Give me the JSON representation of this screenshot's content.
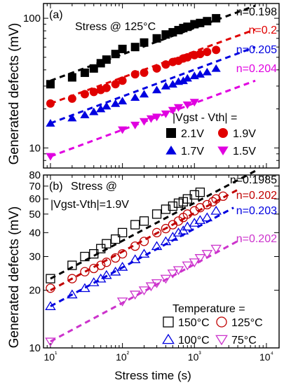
{
  "figure": {
    "x_axis_label": "Stress time (s)",
    "y_axis_label": "Generated defects (mV)"
  },
  "chart_data": [
    {
      "type": "scatter",
      "panel_label": "(a)",
      "annotation": "Stress @ 125°C",
      "legend_title": "|Vgst - Vth| =",
      "legend_placement": "bottom-right",
      "xscale": "log",
      "yscale": "log",
      "xlim": [
        8,
        15000
      ],
      "ylim": [
        7,
        130
      ],
      "x_ticks": [
        10,
        100,
        1000,
        10000
      ],
      "x_tick_labels": [
        "",
        "",
        "",
        ""
      ],
      "y_ticks": [
        10,
        100
      ],
      "y_tick_labels": [
        "10",
        "100"
      ],
      "series": [
        {
          "name": "2.1V",
          "marker": "square-filled",
          "color": "#000000",
          "fit_label": "n=0.198",
          "x": [
            10,
            20,
            30,
            40,
            50,
            60,
            80,
            100,
            150,
            200,
            300,
            400,
            500,
            600,
            700,
            800,
            1000,
            1200,
            1500,
            2000
          ],
          "y": [
            31,
            35,
            38,
            41,
            45,
            48,
            53,
            58,
            60,
            65,
            70,
            75,
            78,
            81,
            84,
            86,
            90,
            92,
            95,
            100
          ],
          "fit": {
            "x": [
              10,
              7000
            ],
            "y": [
              33,
              125
            ]
          }
        },
        {
          "name": "1.9V",
          "marker": "circle-filled",
          "color": "#e00000",
          "fit_label": "n=0.2",
          "x": [
            10,
            20,
            30,
            40,
            50,
            60,
            80,
            100,
            150,
            200,
            300,
            400,
            500,
            600,
            700,
            800,
            1000,
            1200,
            1500,
            2000
          ],
          "y": [
            22,
            24,
            26,
            27,
            28,
            29,
            31,
            33,
            37,
            38,
            41,
            44,
            46,
            47,
            49,
            50,
            52,
            53,
            55,
            57
          ],
          "fit": {
            "x": [
              10,
              7000
            ],
            "y": [
              22,
              82
            ]
          }
        },
        {
          "name": "1.7V",
          "marker": "triangle-up-filled",
          "color": "#0000e0",
          "fit_label": "n=0.205",
          "x": [
            10,
            20,
            30,
            40,
            50,
            60,
            80,
            100,
            150,
            200,
            300,
            400,
            500,
            600,
            700,
            800,
            1000,
            1200,
            1500,
            2000
          ],
          "y": [
            15.5,
            17,
            18,
            19,
            20,
            21,
            22,
            23,
            24.5,
            26,
            28,
            30,
            31,
            32.5,
            33,
            34.5,
            36,
            37,
            38.5,
            41
          ],
          "fit": {
            "x": [
              10,
              7000
            ],
            "y": [
              15.5,
              60
            ]
          }
        },
        {
          "name": "1.5V",
          "marker": "triangle-down-filled",
          "color": "#e000e0",
          "fit_label": "n=0.204",
          "x": [
            10,
            100,
            150,
            200,
            250,
            300,
            400,
            500,
            600,
            800,
            1000
          ],
          "y": [
            8.6,
            13.8,
            15,
            16,
            16.8,
            17.3,
            18.3,
            19.5,
            20.5,
            21.5,
            22.5
          ],
          "fit": {
            "x": [
              10,
              7000
            ],
            "y": [
              8.6,
              33
            ]
          }
        }
      ]
    },
    {
      "type": "scatter",
      "panel_label": "(b)",
      "annotation_lines": [
        "Stress @",
        "|Vgst-Vth|=1.9V"
      ],
      "legend_title": "Temperature =",
      "legend_placement": "bottom-right",
      "xscale": "log",
      "yscale": "log",
      "xlim": [
        8,
        15000
      ],
      "ylim": [
        10,
        80
      ],
      "x_ticks": [
        10,
        100,
        1000,
        10000
      ],
      "x_tick_labels": [
        "10¹",
        "10²",
        "10³",
        "10⁴"
      ],
      "y_ticks": [
        10,
        20,
        30,
        40,
        50,
        60,
        70,
        80
      ],
      "y_tick_labels": [
        "10",
        "20",
        "30",
        "40",
        "50",
        "60",
        "70",
        "80"
      ],
      "series": [
        {
          "name": "150°C",
          "marker": "square-open",
          "color": "#000000",
          "fit_label": "n=0.1985",
          "x": [
            10,
            20,
            30,
            40,
            50,
            60,
            80,
            100,
            150,
            200,
            300,
            400,
            500,
            600,
            700,
            800,
            1000,
            1200
          ],
          "y": [
            23,
            27,
            30,
            31,
            33,
            35,
            37,
            40,
            44,
            46,
            50,
            53,
            55,
            57,
            58,
            60,
            63,
            65
          ],
          "fit": {
            "x": [
              10,
              7000
            ],
            "y": [
              23,
              84
            ]
          }
        },
        {
          "name": "125°C",
          "marker": "circle-open",
          "color": "#c00000",
          "fit_label": "n=0.202",
          "x": [
            10,
            20,
            30,
            40,
            50,
            60,
            80,
            100,
            150,
            200,
            300,
            400,
            500,
            600,
            700,
            800,
            1000,
            1200,
            1500,
            1800,
            2000,
            2500
          ],
          "y": [
            20.5,
            23,
            25,
            26,
            27,
            28,
            29.5,
            31,
            34,
            36,
            40,
            42,
            44,
            46,
            48,
            50,
            52,
            54,
            56,
            58,
            60,
            62
          ],
          "fit": {
            "x": [
              10,
              4000
            ],
            "y": [
              20,
              67
            ]
          }
        },
        {
          "name": "100°C",
          "marker": "triangle-up-open",
          "color": "#0000e0",
          "fit_label": "n=0.203",
          "x": [
            10,
            20,
            30,
            40,
            50,
            60,
            80,
            100,
            150,
            200,
            300,
            400,
            500,
            600,
            700,
            800,
            1000,
            1200,
            1500,
            2000
          ],
          "y": [
            16.5,
            19,
            20.5,
            22,
            23,
            24,
            25,
            26.5,
            29,
            31,
            34,
            36,
            38,
            40,
            41,
            43,
            45,
            46.5,
            48,
            52
          ],
          "fit": {
            "x": [
              10,
              3500
            ],
            "y": [
              16.5,
              54
            ]
          }
        },
        {
          "name": "75°C",
          "marker": "triangle-down-open",
          "color": "#cc33cc",
          "fit_label": "n=0.202",
          "x": [
            10,
            100,
            150,
            200,
            250,
            300,
            400,
            500,
            600,
            800,
            1000,
            1200,
            1500,
            2000
          ],
          "y": [
            10.8,
            17.5,
            19,
            20,
            21,
            21.8,
            23,
            24.5,
            25.5,
            27,
            28,
            29.5,
            31,
            33
          ],
          "fit": {
            "x": [
              10,
              4500
            ],
            "y": [
              10.8,
              37
            ]
          }
        }
      ]
    }
  ]
}
